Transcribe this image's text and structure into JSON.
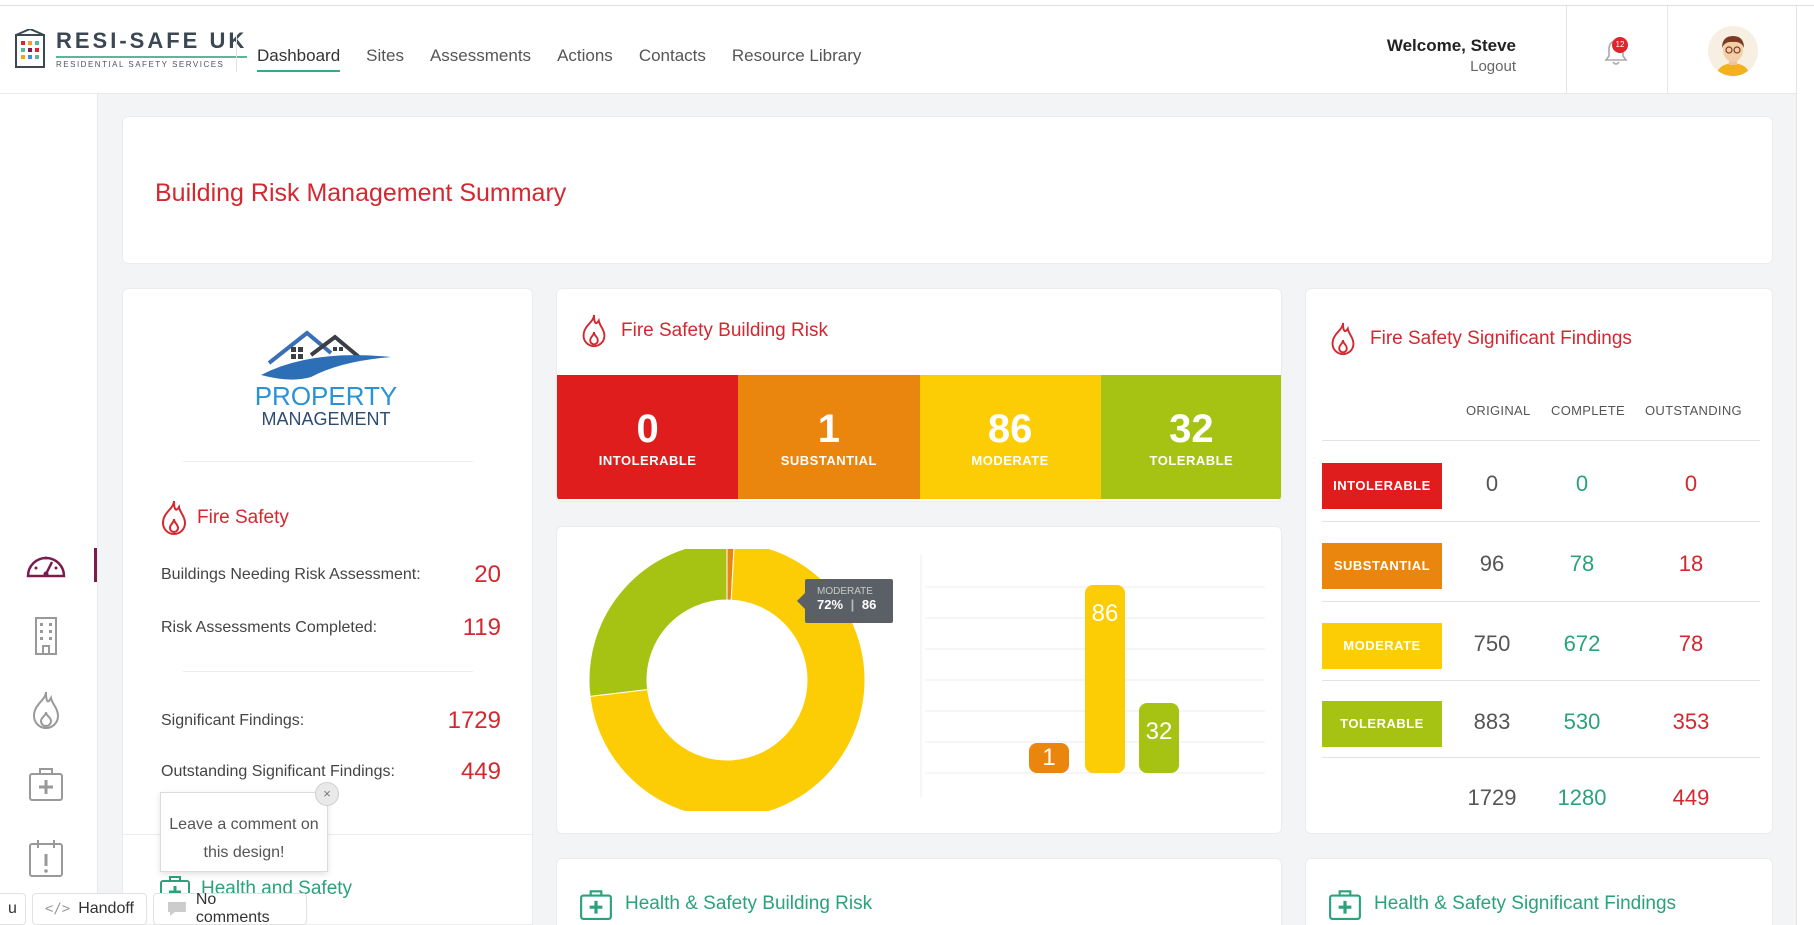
{
  "header": {
    "brand_title": "RESI-SAFE UK",
    "brand_sub": "RESIDENTIAL SAFETY SERVICES",
    "nav": [
      "Dashboard",
      "Sites",
      "Assessments",
      "Actions",
      "Contacts",
      "Resource Library"
    ],
    "active_nav": "Dashboard",
    "welcome": "Welcome, Steve",
    "logout": "Logout",
    "notification_count": "12"
  },
  "sidebar": {
    "icons": [
      "dashboard-gauge-icon",
      "building-icon",
      "fire-icon",
      "first-aid-icon",
      "calendar-alert-icon"
    ]
  },
  "summary": {
    "title": "Building Risk Management Summary"
  },
  "property": {
    "logo_line1": "PROPERTY",
    "logo_line2": "MANAGEMENT",
    "fire_heading": "Fire Safety",
    "stats": [
      {
        "label": "Buildings Needing Risk Assessment:",
        "value": "20"
      },
      {
        "label": "Risk Assessments Completed:",
        "value": "119"
      },
      {
        "label": "Significant Findings:",
        "value": "1729"
      },
      {
        "label": "Outstanding Significant Findings:",
        "value": "449"
      }
    ],
    "health_heading": "Health and Safety"
  },
  "fire_risk": {
    "title": "Fire Safety Building Risk",
    "levels": [
      {
        "value": "0",
        "label": "INTOLERABLE",
        "color": "#df1d1d"
      },
      {
        "value": "1",
        "label": "SUBSTANTIAL",
        "color": "#ea860d"
      },
      {
        "value": "86",
        "label": "MODERATE",
        "color": "#fccd04"
      },
      {
        "value": "32",
        "label": "TOLERABLE",
        "color": "#a6c314"
      }
    ]
  },
  "chart_data": [
    {
      "type": "pie",
      "categories": [
        "Intolerable",
        "Substantial",
        "Moderate",
        "Tolerable"
      ],
      "values": [
        0,
        1,
        86,
        32
      ],
      "colors": [
        "#df1d1d",
        "#ea860d",
        "#fccd04",
        "#a6c314"
      ],
      "tooltip": {
        "label": "MODERATE",
        "percent": "72%",
        "value": "86"
      }
    },
    {
      "type": "bar",
      "categories": [
        "Intolerable",
        "Substantial",
        "Moderate",
        "Tolerable"
      ],
      "values": [
        0,
        1,
        86,
        32
      ],
      "colors": [
        "#df1d1d",
        "#ea860d",
        "#fccd04",
        "#a6c314"
      ],
      "data_labels": [
        "",
        "1",
        "86",
        "32"
      ],
      "grid": true
    }
  ],
  "findings": {
    "title": "Fire Safety Significant Findings",
    "columns": [
      "ORIGINAL",
      "COMPLETE",
      "OUTSTANDING"
    ],
    "rows": [
      {
        "label": "INTOLERABLE",
        "color": "#df1d1d",
        "original": "0",
        "complete": "0",
        "outstanding": "0"
      },
      {
        "label": "SUBSTANTIAL",
        "color": "#ea860d",
        "original": "96",
        "complete": "78",
        "outstanding": "18"
      },
      {
        "label": "MODERATE",
        "color": "#fccd04",
        "original": "750",
        "complete": "672",
        "outstanding": "78"
      },
      {
        "label": "TOLERABLE",
        "color": "#a6c314",
        "original": "883",
        "complete": "530",
        "outstanding": "353"
      }
    ],
    "totals": {
      "original": "1729",
      "complete": "1280",
      "outstanding": "449"
    }
  },
  "health_risk": {
    "title": "Health & Safety Building Risk"
  },
  "health_findings": {
    "title": "Health & Safety Significant Findings"
  },
  "overlay": {
    "comment_text": "Leave a comment on this design!",
    "close": "×",
    "handoff_label": "Handoff",
    "comments_label": "No comments",
    "left_stub": "u"
  },
  "colors": {
    "accent_red": "#d4272f",
    "accent_green": "#2aa27a",
    "nav_underline": "#3aa68a"
  }
}
